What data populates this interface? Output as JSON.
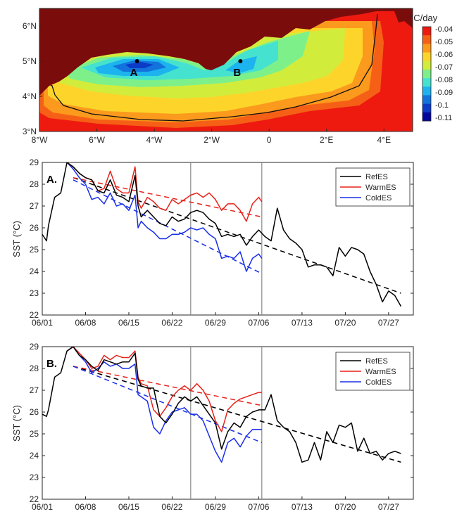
{
  "chart_data": [
    {
      "type": "heatmap",
      "title": "",
      "colorbar_label": "°C/day",
      "colorbar_ticks": [
        "-0.04",
        "-0.05",
        "-0.06",
        "-0.07",
        "-0.08",
        "-0.09",
        "-0.1",
        "-0.11"
      ],
      "colorbar_colors": [
        "#ee1a10",
        "#f56016",
        "#fb9a1d",
        "#fdd52a",
        "#d2ec3c",
        "#7ef08a",
        "#45e2cf",
        "#1cb3ee",
        "#1373dc",
        "#0b3bc7",
        "#03069a"
      ],
      "land_color": "#7a0c0c",
      "x_ticks": [
        "8°W",
        "6°W",
        "4°W",
        "2°W",
        "0",
        "2°E",
        "4°E"
      ],
      "y_ticks": [
        "3°N",
        "4°N",
        "5°N",
        "6°N"
      ],
      "xlim": [
        -8,
        5
      ],
      "ylim": [
        3,
        6.5
      ],
      "points": [
        {
          "label": "A",
          "lon": -4.6,
          "lat": 5.0
        },
        {
          "label": "B",
          "lon": -1.0,
          "lat": 5.0
        }
      ]
    },
    {
      "type": "line",
      "panel_label": "A.",
      "ylabel": "SST (°C)",
      "ylim": [
        22,
        29
      ],
      "y_ticks": [
        22,
        23,
        24,
        25,
        26,
        27,
        28,
        29
      ],
      "x_ticks": [
        "06/01",
        "06/08",
        "06/15",
        "06/22",
        "06/29",
        "07/06",
        "07/13",
        "07/20",
        "07/27"
      ],
      "xlim": [
        0,
        60
      ],
      "vlines": [
        24,
        35.5
      ],
      "series": [
        {
          "name": "RefES",
          "color": "#000000",
          "x": [
            0,
            0.7,
            1,
            2,
            3,
            4,
            5,
            6,
            7,
            8,
            9,
            10,
            11,
            12,
            13,
            14,
            15,
            15.5,
            16,
            17,
            18,
            19,
            20,
            21,
            22,
            23,
            24,
            25,
            26,
            27,
            28,
            29,
            30,
            31,
            32,
            33,
            34,
            35,
            36,
            37,
            38,
            39,
            40,
            41,
            42,
            43,
            44,
            45,
            46,
            47,
            48,
            49,
            50,
            51,
            52,
            53,
            54,
            55,
            56,
            57,
            58
          ],
          "y": [
            25.7,
            25.4,
            26.1,
            27.4,
            27.6,
            29.0,
            28.8,
            28.5,
            28.3,
            28.2,
            27.7,
            27.6,
            28.2,
            27.5,
            27.4,
            27.2,
            28.4,
            27.0,
            26.5,
            26.8,
            26.5,
            26.2,
            26.1,
            26.5,
            26.3,
            26.4,
            26.7,
            26.8,
            26.7,
            26.4,
            26.2,
            25.6,
            25.7,
            25.6,
            25.7,
            25.2,
            25.6,
            25.9,
            25.6,
            25.4,
            26.9,
            25.9,
            25.5,
            25.3,
            25.0,
            24.2,
            24.3,
            24.3,
            24.2,
            23.8,
            25.1,
            24.7,
            25.1,
            25.0,
            24.8,
            24.0,
            23.4,
            22.6,
            23.1,
            22.9,
            22.4
          ]
        },
        {
          "name": "WarmES",
          "color": "#e8221a",
          "x": [
            4,
            5,
            6,
            7,
            8,
            9,
            10,
            11,
            12,
            13,
            14,
            15,
            15.5,
            16,
            17,
            18,
            19,
            20,
            21,
            22,
            23,
            24,
            25,
            26,
            27,
            28,
            29,
            30,
            31,
            32,
            33,
            34,
            35,
            35.5
          ],
          "y": [
            29.0,
            28.8,
            28.5,
            28.3,
            28.2,
            27.7,
            27.8,
            28.6,
            27.8,
            27.6,
            27.6,
            28.8,
            27.2,
            26.9,
            27.4,
            27.2,
            26.9,
            26.8,
            27.3,
            27.1,
            27.3,
            27.5,
            27.6,
            27.4,
            27.6,
            27.3,
            26.8,
            27.1,
            27.1,
            26.8,
            26.3,
            27.1,
            27.4,
            27.2
          ]
        },
        {
          "name": "ColdES",
          "color": "#1a2fe8",
          "x": [
            4,
            5,
            6,
            7,
            8,
            9,
            10,
            11,
            12,
            13,
            14,
            15,
            15.5,
            16,
            17,
            18,
            19,
            20,
            21,
            22,
            23,
            24,
            25,
            26,
            27,
            28,
            29,
            30,
            31,
            32,
            33,
            34,
            35,
            35.5
          ],
          "y": [
            29.0,
            28.7,
            28.3,
            28.0,
            27.3,
            27.4,
            27.1,
            27.6,
            27.0,
            27.1,
            26.8,
            27.5,
            26.0,
            26.3,
            26.0,
            25.8,
            25.5,
            25.5,
            25.7,
            25.7,
            25.8,
            26.0,
            25.9,
            26.0,
            25.7,
            25.5,
            24.6,
            24.7,
            24.6,
            24.9,
            24.0,
            24.6,
            24.8,
            24.6
          ]
        }
      ],
      "trend_lines": [
        {
          "color": "#000000",
          "x": [
            5,
            58
          ],
          "y": [
            28.3,
            23.0
          ]
        },
        {
          "color": "#e8221a",
          "x": [
            5,
            35.5
          ],
          "y": [
            28.3,
            26.5
          ]
        },
        {
          "color": "#1a2fe8",
          "x": [
            5,
            35.5
          ],
          "y": [
            28.2,
            23.9
          ]
        }
      ]
    },
    {
      "type": "line",
      "panel_label": "B.",
      "ylabel": "SST (°C)",
      "ylim": [
        22,
        29
      ],
      "y_ticks": [
        22,
        23,
        24,
        25,
        26,
        27,
        28,
        29
      ],
      "x_ticks": [
        "06/01",
        "06/08",
        "06/15",
        "06/22",
        "06/29",
        "07/06",
        "07/13",
        "07/20",
        "07/27"
      ],
      "xlim": [
        0,
        60
      ],
      "vlines": [
        24,
        35.5
      ],
      "series": [
        {
          "name": "RefES",
          "color": "#000000",
          "x": [
            0,
            0.7,
            1,
            2,
            3,
            4,
            5,
            6,
            7,
            8,
            9,
            10,
            11,
            12,
            13,
            14,
            15,
            15.5,
            16,
            17,
            18,
            19,
            20,
            21,
            22,
            23,
            24,
            25,
            26,
            27,
            28,
            29,
            30,
            31,
            32,
            33,
            34,
            35,
            36,
            37,
            38,
            39,
            40,
            41,
            42,
            43,
            44,
            45,
            46,
            47,
            48,
            49,
            50,
            51,
            52,
            53,
            54,
            55,
            56,
            57,
            58
          ],
          "y": [
            25.9,
            25.8,
            26.1,
            27.6,
            27.8,
            28.8,
            29.0,
            28.6,
            28.4,
            28.1,
            27.9,
            28.4,
            28.3,
            28.2,
            28.3,
            28.3,
            28.7,
            27.5,
            27.2,
            27.1,
            27.1,
            25.8,
            25.5,
            25.9,
            26.4,
            26.7,
            26.5,
            26.7,
            26.3,
            25.9,
            25.5,
            24.3,
            25.1,
            25.5,
            25.3,
            25.8,
            26.0,
            26.1,
            26.1,
            26.8,
            25.6,
            25.3,
            25.1,
            24.6,
            23.7,
            23.8,
            24.6,
            23.8,
            25.1,
            24.6,
            25.4,
            25.3,
            25.5,
            24.2,
            24.8,
            24.1,
            24.2,
            23.8,
            24.1,
            24.2,
            24.1
          ]
        },
        {
          "name": "WarmES",
          "color": "#e8221a",
          "x": [
            4,
            5,
            6,
            7,
            8,
            9,
            10,
            11,
            12,
            13,
            14,
            15,
            15.5,
            16,
            17,
            18,
            19,
            20,
            21,
            22,
            23,
            24,
            25,
            26,
            27,
            28,
            29,
            30,
            31,
            32,
            33,
            34,
            35,
            35.5
          ],
          "y": [
            28.8,
            29.0,
            28.7,
            28.4,
            28.0,
            28.1,
            28.6,
            28.4,
            28.6,
            28.5,
            28.5,
            28.8,
            27.6,
            27.3,
            27.2,
            26.1,
            25.8,
            26.2,
            26.7,
            27.0,
            27.2,
            27.0,
            27.3,
            27.0,
            26.5,
            25.6,
            25.1,
            26.1,
            26.4,
            26.6,
            26.7,
            26.8,
            26.9,
            26.9
          ]
        },
        {
          "name": "ColdES",
          "color": "#1a2fe8",
          "x": [
            4,
            5,
            6,
            7,
            8,
            9,
            10,
            11,
            12,
            13,
            14,
            15,
            15.5,
            16,
            17,
            18,
            19,
            20,
            21,
            22,
            23,
            24,
            25,
            26,
            27,
            28,
            29,
            30,
            31,
            32,
            33,
            34,
            35,
            35.5
          ],
          "y": [
            28.8,
            29.0,
            28.6,
            28.3,
            27.8,
            28.0,
            28.3,
            28.1,
            28.2,
            28.0,
            28.0,
            28.2,
            26.8,
            26.7,
            26.5,
            25.3,
            25.0,
            25.6,
            26.0,
            26.1,
            26.2,
            25.9,
            25.9,
            25.6,
            24.9,
            24.2,
            23.7,
            24.6,
            24.8,
            24.4,
            24.9,
            25.2,
            25.2,
            25.2
          ]
        }
      ],
      "trend_lines": [
        {
          "color": "#000000",
          "x": [
            5,
            58
          ],
          "y": [
            28.1,
            23.7
          ]
        },
        {
          "color": "#e8221a",
          "x": [
            5,
            35.5
          ],
          "y": [
            28.1,
            26.3
          ]
        },
        {
          "color": "#1a2fe8",
          "x": [
            5,
            35.5
          ],
          "y": [
            28.1,
            24.6
          ]
        }
      ]
    }
  ]
}
